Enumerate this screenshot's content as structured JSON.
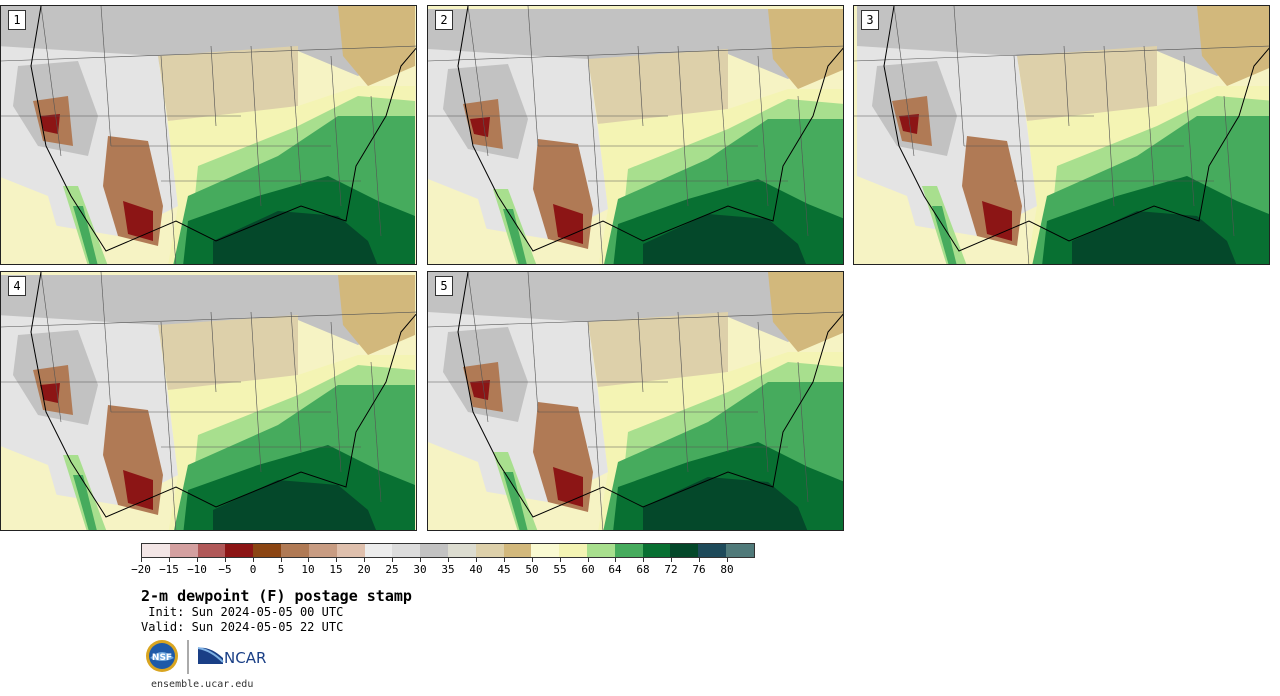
{
  "panels": [
    {
      "label": "1"
    },
    {
      "label": "2"
    },
    {
      "label": "3"
    },
    {
      "label": "4"
    },
    {
      "label": "5"
    }
  ],
  "colorbar": {
    "colors": [
      "#f3e6e6",
      "#d4a0a0",
      "#b05858",
      "#8c1515",
      "#8b4513",
      "#b07a55",
      "#c89c82",
      "#dfc0ad",
      "#ececec",
      "#dcdcdc",
      "#c2c2c2",
      "#dcdcd0",
      "#ddd0aa",
      "#d2b87c",
      "#fafad2",
      "#f4f4b4",
      "#a8df8e",
      "#46ab5d",
      "#087032",
      "#04482a",
      "#1e4a5a",
      "#507a7a"
    ],
    "tick_labels": [
      "−20",
      "−15",
      "−10",
      "−5",
      "0",
      "5",
      "10",
      "15",
      "20",
      "25",
      "30",
      "35",
      "40",
      "45",
      "50",
      "55",
      "60",
      "64",
      "68",
      "72",
      "76",
      "80"
    ]
  },
  "title": "2-m dewpoint (F) postage stamp",
  "init": " Init: Sun 2024-05-05 00 UTC",
  "valid": "Valid: Sun 2024-05-05 22 UTC",
  "logos": {
    "nsf": "NSF",
    "ncar": "NCAR"
  },
  "url": "ensemble.ucar.edu",
  "map_colors": {
    "pale_yellow": "#f6f3c4",
    "yellow": "#f4f4b4",
    "light_green": "#a8df8e",
    "mid_green": "#46ab5d",
    "dark_green": "#087032",
    "darkest_green": "#04482a",
    "gray": "#c2c2c2",
    "light_gray": "#e4e4e4",
    "tan": "#ddd0aa",
    "dark_tan": "#d2b87c",
    "brown": "#b07a55",
    "dark_red": "#8c1515"
  }
}
